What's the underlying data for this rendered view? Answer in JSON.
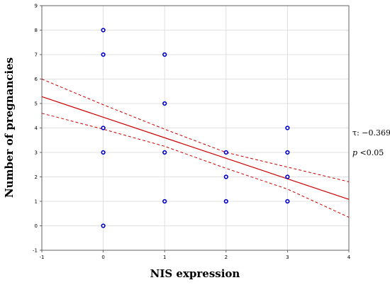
{
  "chart_data": {
    "type": "scatter",
    "xlabel": "NIS expression",
    "ylabel": "Number of pregnancies",
    "xlim": [
      -1,
      4
    ],
    "ylim": [
      -1,
      9
    ],
    "x_ticks": [
      "-1",
      "0",
      "1",
      "2",
      "3",
      "4"
    ],
    "y_ticks": [
      "-1",
      "0",
      "1",
      "2",
      "3",
      "4",
      "5",
      "6",
      "7",
      "8",
      "9"
    ],
    "grid": true,
    "series": [
      {
        "points": [
          [
            0,
            8
          ],
          [
            0,
            7
          ],
          [
            0,
            4
          ],
          [
            0,
            3
          ],
          [
            0,
            0
          ],
          [
            1,
            7
          ],
          [
            1,
            5
          ],
          [
            1,
            3
          ],
          [
            1,
            1
          ],
          [
            2,
            3
          ],
          [
            2,
            2
          ],
          [
            2,
            1
          ],
          [
            3,
            4
          ],
          [
            3,
            3
          ],
          [
            3,
            2
          ],
          [
            3,
            1
          ]
        ],
        "color": "#0000cc"
      }
    ],
    "fit_line": {
      "x": [
        -1,
        4
      ],
      "y": [
        5.28,
        1.08
      ],
      "color": "#cc0000"
    },
    "confidence_band": {
      "upper": {
        "x": [
          -1,
          0,
          1,
          2,
          3,
          4
        ],
        "y": [
          6.0,
          4.95,
          3.95,
          3.0,
          2.4,
          1.8
        ]
      },
      "lower": {
        "x": [
          -1,
          0,
          1,
          2,
          3,
          4
        ],
        "y": [
          4.6,
          3.95,
          3.25,
          2.35,
          1.5,
          0.35
        ]
      },
      "color": "#cc0000"
    },
    "annotations": {
      "tau_label": "τ: −0.369",
      "p_symbol": "p",
      "p_value": " <0.05"
    }
  }
}
